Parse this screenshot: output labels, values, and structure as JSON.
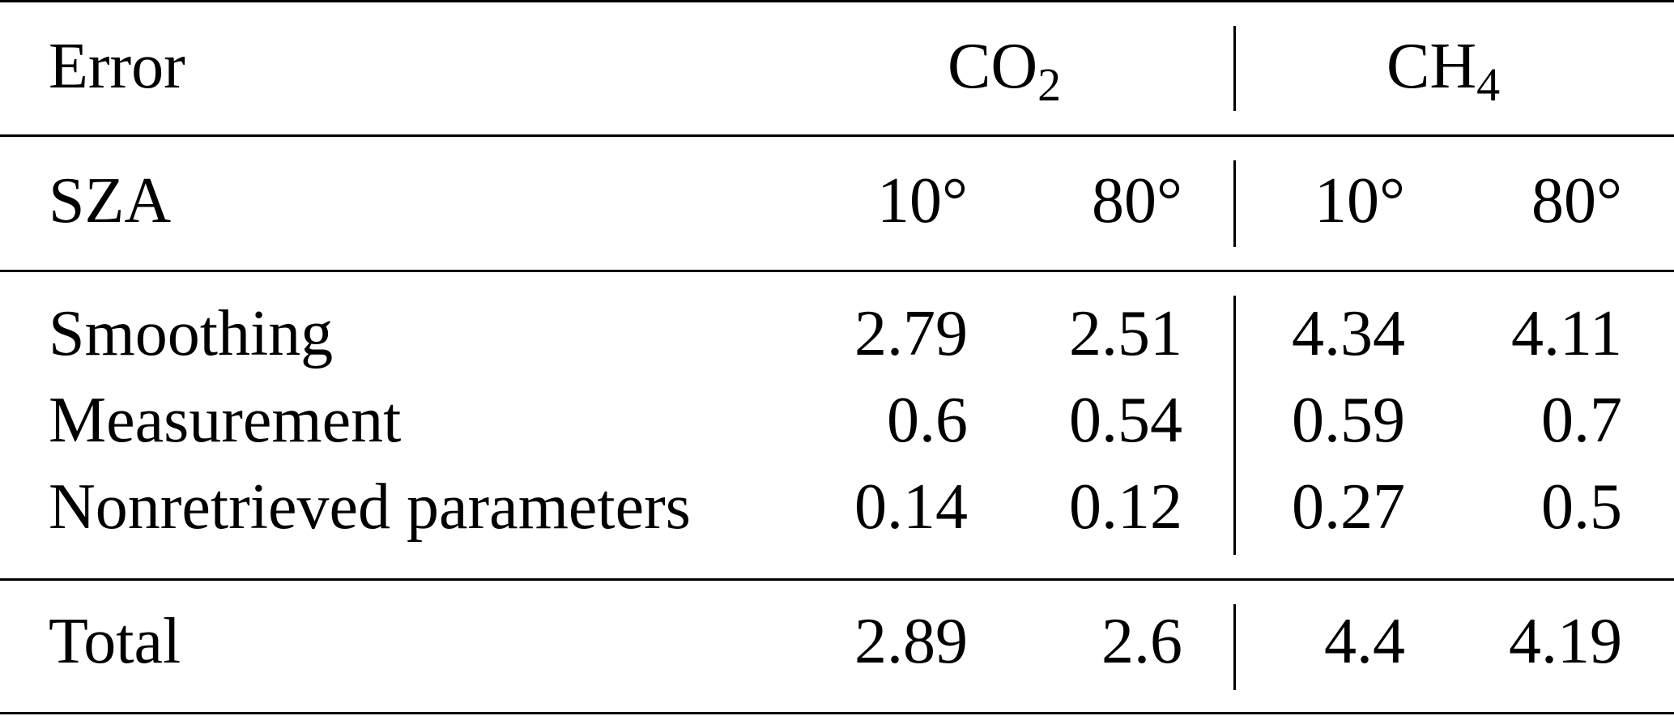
{
  "table": {
    "header": {
      "error_label": "Error",
      "co2": {
        "base": "CO",
        "sub": "2"
      },
      "ch4": {
        "base": "CH",
        "sub": "4"
      }
    },
    "sza_row": {
      "label": "SZA",
      "values": [
        "10°",
        "80°",
        "10°",
        "80°"
      ]
    },
    "rows": [
      {
        "label": "Smoothing",
        "values": [
          "2.79",
          "2.51",
          "4.34",
          "4.11"
        ]
      },
      {
        "label": "Measurement",
        "values": [
          "0.6",
          "0.54",
          "0.59",
          "0.7"
        ]
      },
      {
        "label": "Nonretrieved parameters",
        "values": [
          "0.14",
          "0.12",
          "0.27",
          "0.5"
        ]
      }
    ],
    "total": {
      "label": "Total",
      "values": [
        "2.89",
        "2.6",
        "4.4",
        "4.19"
      ]
    }
  }
}
